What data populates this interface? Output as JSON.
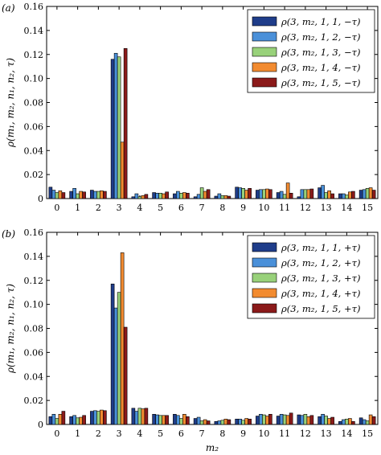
{
  "chart_data": [
    {
      "type": "bar",
      "panel": "(a)",
      "ylabel": "ρ(m₁, m₂, n₁, n₂, τ)",
      "xlabel": "",
      "ylim": [
        0,
        0.16
      ],
      "yticks": [
        "0",
        "0.02",
        "0.04",
        "0.06",
        "0.08",
        "0.10",
        "0.12",
        "0.14",
        "0.16"
      ],
      "categories": [
        "0",
        "1",
        "2",
        "3",
        "4",
        "5",
        "6",
        "7",
        "8",
        "9",
        "10",
        "11",
        "12",
        "13",
        "14",
        "15"
      ],
      "legend_position": "top-right",
      "series": [
        {
          "name": "ρ(3, m₂, 1, 1, −τ)",
          "color": "#1f3d8a",
          "values": [
            0.0095,
            0.006,
            0.007,
            0.116,
            0.0015,
            0.005,
            0.004,
            0.0015,
            0.002,
            0.0095,
            0.007,
            0.005,
            0.0015,
            0.009,
            0.004,
            0.007
          ]
        },
        {
          "name": "ρ(3, m₂, 1, 2, −τ)",
          "color": "#4a90d9",
          "values": [
            0.007,
            0.0085,
            0.006,
            0.121,
            0.004,
            0.0045,
            0.006,
            0.0035,
            0.004,
            0.009,
            0.0075,
            0.006,
            0.0075,
            0.011,
            0.004,
            0.0075
          ]
        },
        {
          "name": "ρ(3, m₂, 1, 3, −τ)",
          "color": "#98d17a",
          "values": [
            0.005,
            0.004,
            0.006,
            0.118,
            0.0015,
            0.0045,
            0.0045,
            0.009,
            0.0025,
            0.0085,
            0.0075,
            0.0035,
            0.0075,
            0.005,
            0.003,
            0.0085
          ]
        },
        {
          "name": "ρ(3, m₂, 1, 4, −τ)",
          "color": "#f28b30",
          "values": [
            0.0065,
            0.006,
            0.0065,
            0.047,
            0.0025,
            0.004,
            0.005,
            0.006,
            0.0025,
            0.007,
            0.008,
            0.013,
            0.0075,
            0.0065,
            0.0055,
            0.009
          ]
        },
        {
          "name": "ρ(3, m₂, 1, 5, −τ)",
          "color": "#8b1a1a",
          "values": [
            0.005,
            0.0055,
            0.006,
            0.125,
            0.0035,
            0.0055,
            0.0045,
            0.0075,
            0.002,
            0.0085,
            0.0075,
            0.0045,
            0.008,
            0.004,
            0.006,
            0.007
          ]
        }
      ]
    },
    {
      "type": "bar",
      "panel": "(b)",
      "ylabel": "ρ(m₁, m₂, n₁, n₂, τ)",
      "xlabel": "m₂",
      "ylim": [
        0,
        0.16
      ],
      "yticks": [
        "0",
        "0.02",
        "0.04",
        "0.06",
        "0.08",
        "0.10",
        "0.12",
        "0.14",
        "0.16"
      ],
      "categories": [
        "0",
        "1",
        "2",
        "3",
        "4",
        "5",
        "6",
        "7",
        "8",
        "9",
        "10",
        "11",
        "12",
        "13",
        "14",
        "15"
      ],
      "legend_position": "top-right",
      "series": [
        {
          "name": "ρ(3, m₂, 1, 1, +τ)",
          "color": "#1f3d8a",
          "values": [
            0.0065,
            0.0065,
            0.011,
            0.117,
            0.0135,
            0.0085,
            0.0085,
            0.005,
            0.0025,
            0.0045,
            0.007,
            0.007,
            0.008,
            0.0065,
            0.0025,
            0.0055
          ]
        },
        {
          "name": "ρ(3, m₂, 1, 2, +τ)",
          "color": "#4a90d9",
          "values": [
            0.0085,
            0.0075,
            0.0115,
            0.097,
            0.011,
            0.008,
            0.0075,
            0.006,
            0.003,
            0.0045,
            0.0085,
            0.0085,
            0.0075,
            0.0085,
            0.004,
            0.004
          ]
        },
        {
          "name": "ρ(3, m₂, 1, 3, +τ)",
          "color": "#98d17a",
          "values": [
            0.005,
            0.0055,
            0.011,
            0.11,
            0.0135,
            0.0075,
            0.005,
            0.003,
            0.0035,
            0.0035,
            0.008,
            0.008,
            0.0085,
            0.007,
            0.0045,
            0.003
          ]
        },
        {
          "name": "ρ(3, m₂, 1, 4, +τ)",
          "color": "#f28b30",
          "values": [
            0.0085,
            0.006,
            0.012,
            0.143,
            0.013,
            0.0075,
            0.0085,
            0.004,
            0.0045,
            0.005,
            0.007,
            0.0075,
            0.0065,
            0.005,
            0.005,
            0.008
          ]
        },
        {
          "name": "ρ(3, m₂, 1, 5, +τ)",
          "color": "#8b1a1a",
          "values": [
            0.011,
            0.0075,
            0.0115,
            0.081,
            0.0135,
            0.0075,
            0.0065,
            0.003,
            0.004,
            0.0045,
            0.0085,
            0.0095,
            0.0075,
            0.006,
            0.0025,
            0.0065
          ]
        }
      ]
    }
  ]
}
